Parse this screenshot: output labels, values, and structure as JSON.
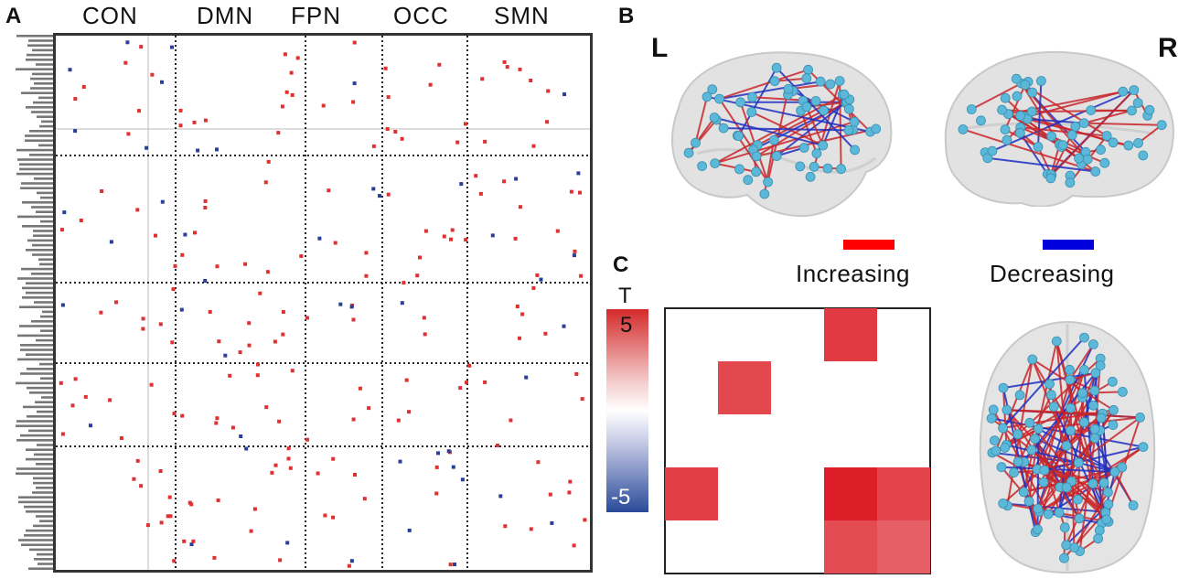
{
  "panel_a": {
    "letter": "A",
    "networks": [
      "CON",
      "DMN",
      "FPN",
      "OCC",
      "SMN"
    ]
  },
  "panel_b": {
    "letter": "B",
    "left_label": "L",
    "right_label": "R",
    "legend": {
      "increasing": "Increasing",
      "decreasing": "Decreasing",
      "increasing_color": "#ff0000",
      "decreasing_color": "#0000dd"
    }
  },
  "panel_c": {
    "letter": "C",
    "colorbar_title": "T",
    "colorbar_max": "5",
    "colorbar_min": "-5",
    "max_color": "#d42a2a",
    "min_color": "#2a4a9a",
    "cells": [
      {
        "row": 0,
        "col": 3,
        "t": 4.2
      },
      {
        "row": 1,
        "col": 1,
        "t": 3.9
      },
      {
        "row": 3,
        "col": 0,
        "t": 4.1
      },
      {
        "row": 3,
        "col": 3,
        "t": 4.8
      },
      {
        "row": 3,
        "col": 4,
        "t": 4.0
      },
      {
        "row": 4,
        "col": 3,
        "t": 3.8
      },
      {
        "row": 4,
        "col": 4,
        "t": 3.4
      }
    ]
  },
  "colors": {
    "positive": "#e03030",
    "negative": "#2a3f9a",
    "node": "#5bb8d8",
    "brain": "#dcdcdc"
  }
}
